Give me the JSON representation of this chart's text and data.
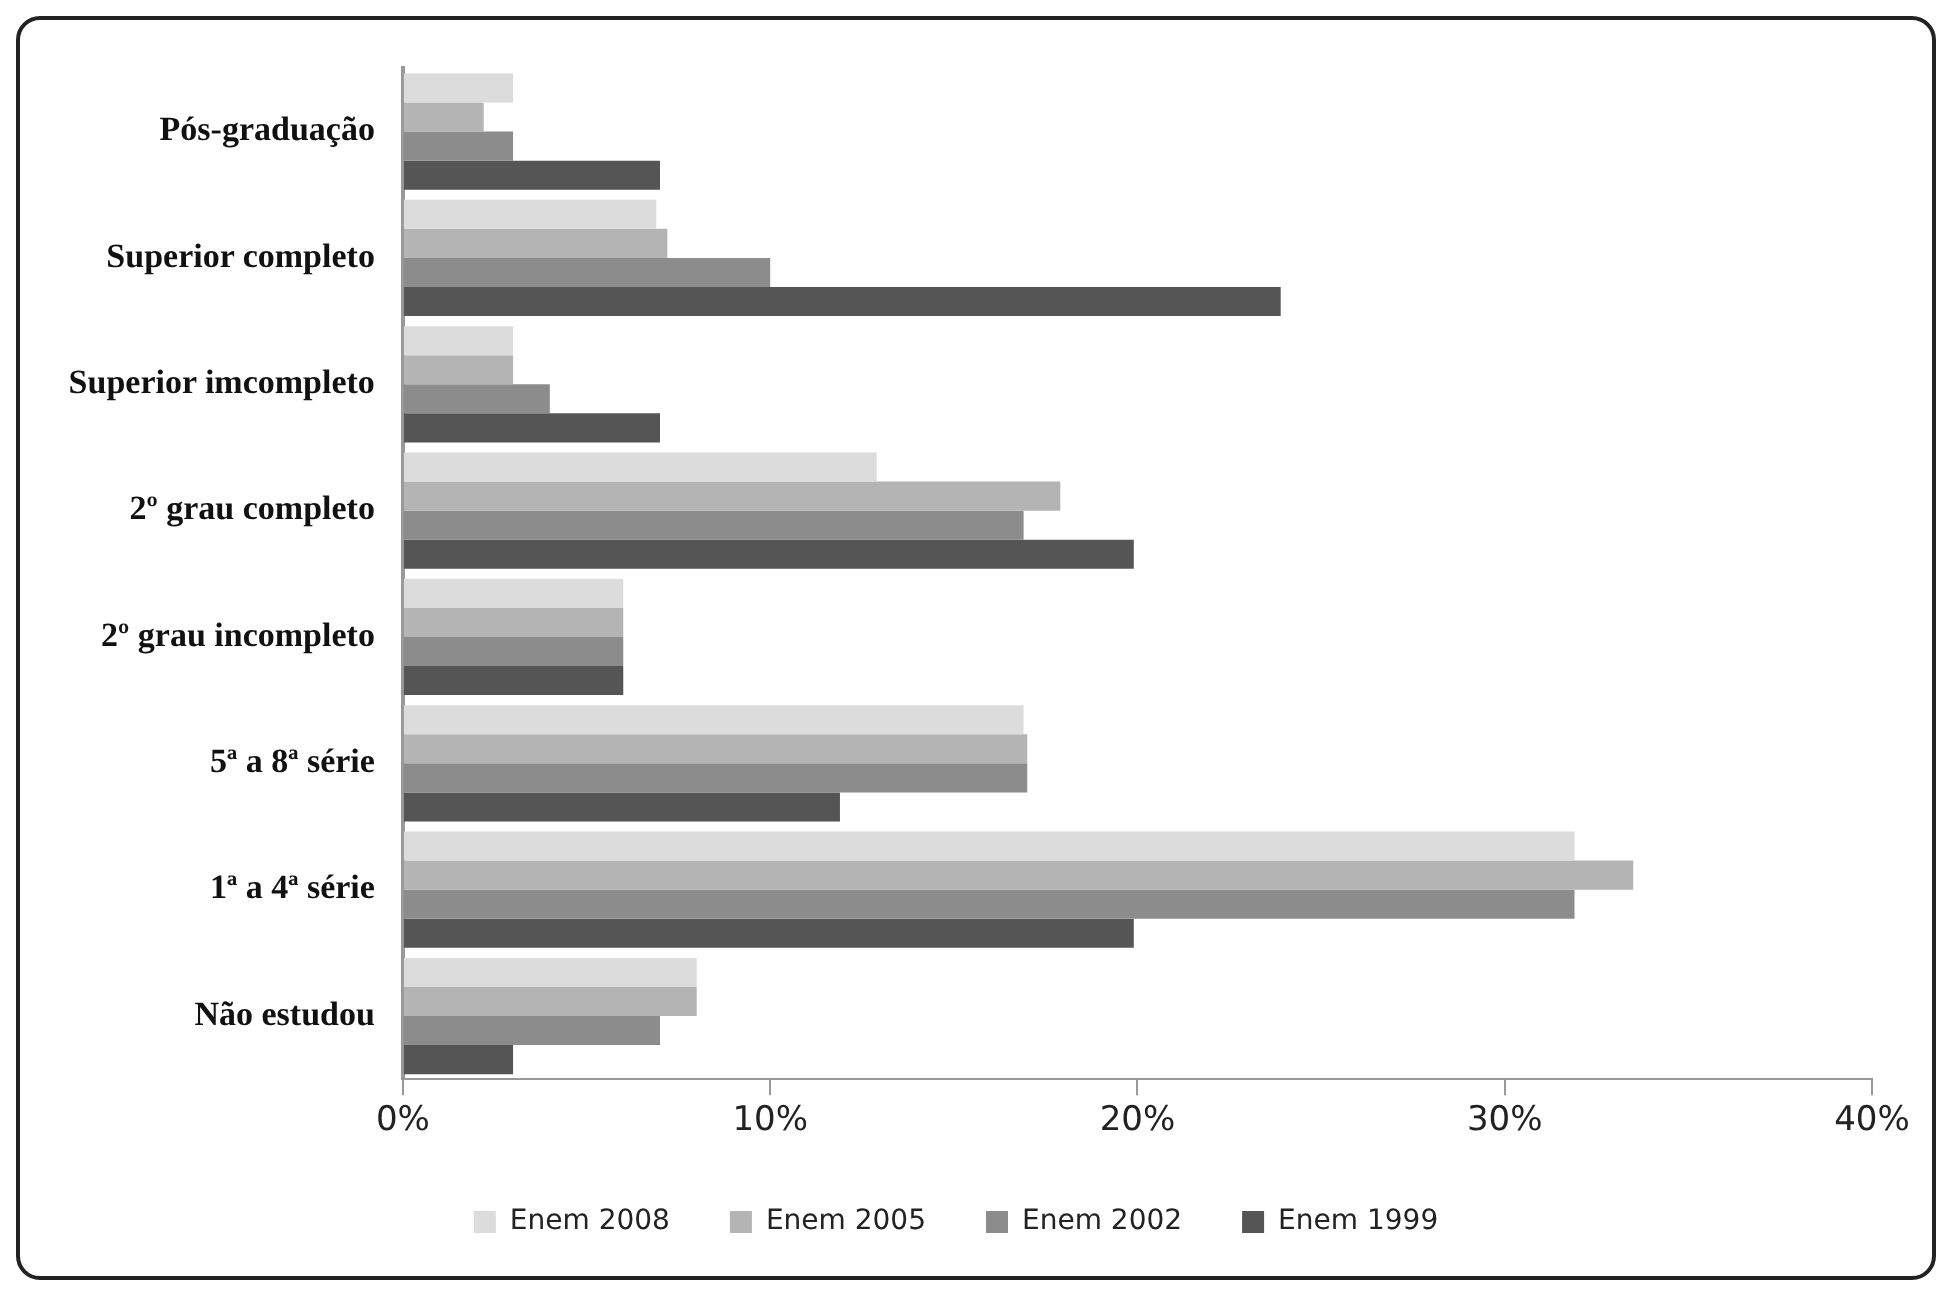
{
  "chart_data": {
    "type": "bar",
    "orientation": "horizontal",
    "categories": [
      "Pós-graduação",
      "Superior completo",
      "Superior imcompleto",
      "2º grau completo",
      "2º grau incompleto",
      "5ª a 8ª série",
      "1ª a 4ª série",
      "Não estudou"
    ],
    "series": [
      {
        "name": "Enem 2008",
        "color": "#dcdcdc",
        "values": [
          3,
          6.9,
          3,
          12.9,
          6,
          16.9,
          31.9,
          8
        ]
      },
      {
        "name": "Enem 2005",
        "color": "#b4b4b4",
        "values": [
          2.2,
          7.2,
          3,
          17.9,
          6,
          17,
          33.5,
          8
        ]
      },
      {
        "name": "Enem 2002",
        "color": "#8c8c8c",
        "values": [
          3,
          10,
          4,
          16.9,
          6,
          17,
          31.9,
          7
        ]
      },
      {
        "name": "Enem 1999",
        "color": "#555555",
        "values": [
          7,
          23.9,
          7,
          19.9,
          6,
          11.9,
          19.9,
          3
        ]
      }
    ],
    "xlim": [
      0,
      40
    ],
    "xticks": [
      {
        "value": 0,
        "label": "0%"
      },
      {
        "value": 10,
        "label": "10%"
      },
      {
        "value": 20,
        "label": "20%"
      },
      {
        "value": 30,
        "label": "30%"
      },
      {
        "value": 40,
        "label": "40%"
      }
    ],
    "grid": false,
    "legend": "bottom"
  }
}
